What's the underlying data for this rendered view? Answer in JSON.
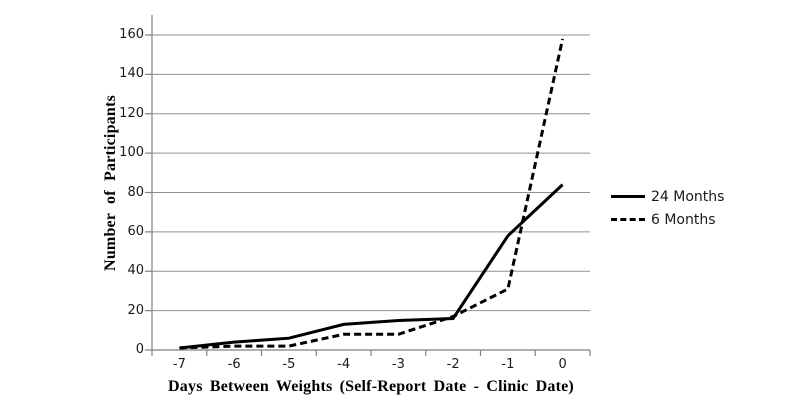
{
  "chart_data": {
    "type": "line",
    "title": "",
    "xlabel": "Days Between Weights (Self-Report Date - Clinic Date)",
    "ylabel": "Number of Participants",
    "categories": [
      "-7",
      "-6",
      "-5",
      "-4",
      "-3",
      "-2",
      "-1",
      "0"
    ],
    "y_ticks": [
      0,
      20,
      40,
      60,
      80,
      100,
      120,
      140,
      160
    ],
    "ylim": [
      0,
      160
    ],
    "grid": "horizontal-only",
    "legend_position": "right",
    "series": [
      {
        "name": "24 Months",
        "style": "solid",
        "color": "#000000",
        "values": [
          1,
          4,
          6,
          13,
          15,
          16,
          58,
          84
        ]
      },
      {
        "name": "6 Months",
        "style": "dashed",
        "color": "#000000",
        "values": [
          1,
          2,
          2,
          8,
          8,
          17,
          31,
          158
        ]
      }
    ]
  },
  "colors": {
    "gridline": "#909090",
    "axis": "#808080",
    "tick_label": "#1a1a1a",
    "line": "#000000",
    "background": "#ffffff"
  }
}
